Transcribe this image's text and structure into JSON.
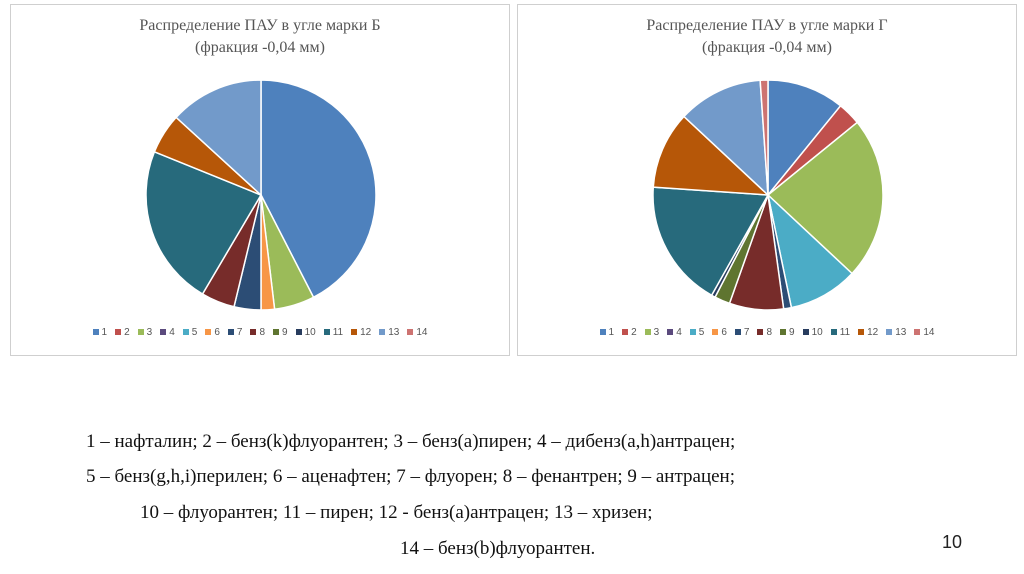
{
  "chart_data": [
    {
      "type": "pie",
      "title_line1": "Распределение ПАУ в угле марки Б",
      "title_line2": "(фракция -0,04 мм)",
      "categories": [
        "1",
        "2",
        "3",
        "4",
        "5",
        "6",
        "7",
        "8",
        "9",
        "10",
        "11",
        "12",
        "13",
        "14"
      ],
      "values": [
        45,
        0,
        6,
        0,
        0,
        2,
        4,
        5,
        0,
        0,
        24,
        6,
        14,
        0
      ],
      "colors": [
        "#4e81bd",
        "#c0504d",
        "#9bbb59",
        "#5b4a7d",
        "#4bacc6",
        "#f79646",
        "#2c4d75",
        "#772c2a",
        "#5f7530",
        "#283c5e",
        "#276a7c",
        "#b65708",
        "#729aca",
        "#cd7371"
      ]
    },
    {
      "type": "pie",
      "title_line1": "Распределение ПАУ в угле марки Г",
      "title_line2": "(фракция -0,04 мм)",
      "categories": [
        "1",
        "2",
        "3",
        "4",
        "5",
        "6",
        "7",
        "8",
        "9",
        "10",
        "11",
        "12",
        "13",
        "14"
      ],
      "values": [
        10,
        3,
        21,
        0,
        9,
        0,
        1,
        7,
        2,
        0.5,
        16.5,
        10,
        11,
        1
      ],
      "colors": [
        "#4e81bd",
        "#c0504d",
        "#9bbb59",
        "#5b4a7d",
        "#4bacc6",
        "#f79646",
        "#2c4d75",
        "#772c2a",
        "#5f7530",
        "#283c5e",
        "#276a7c",
        "#b65708",
        "#729aca",
        "#cd7371"
      ]
    }
  ],
  "chart_values_order_note_b": "",
  "captions": {
    "line1": "1 – нафталин; 2 – бенз(k)флуорантен; 3 – бенз(a)пирен; 4 – дибенз(a,h)антрацен;",
    "line2": "5 – бенз(g,h,i)перилен; 6 – аценафтен; 7 – флуорен; 8 – фенантрен; 9 – антрацен;",
    "line3": "10 – флуорантен; 11 – пирен; 12 - бенз(a)антрацен; 13 – хризен;",
    "line4": "14 – бенз(b)флуорантен."
  },
  "page_number": "10"
}
